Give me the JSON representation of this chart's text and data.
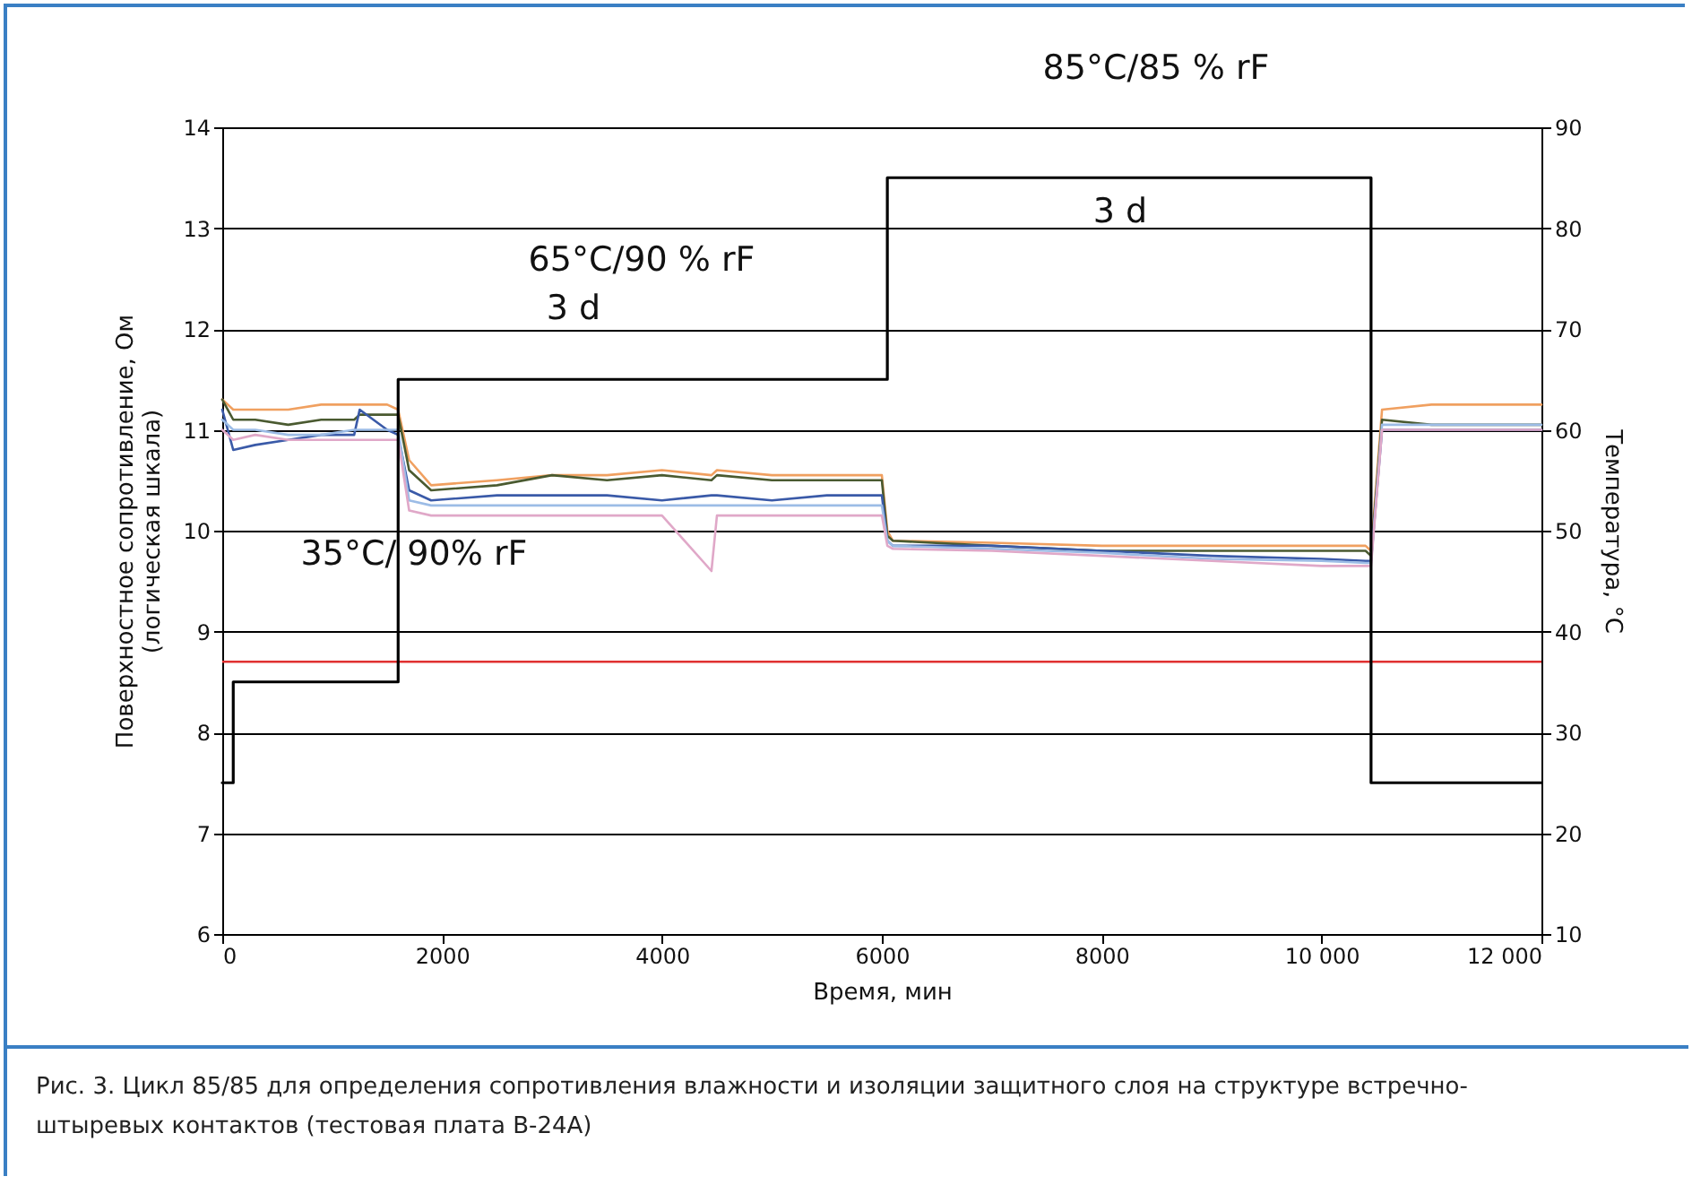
{
  "chart_data": {
    "type": "line",
    "xlabel": "Время, мин",
    "ylabel": "Поверхностное сопротивление, Ом\n(логическая шкала)",
    "y2label": "Температура, °C",
    "x": [
      0,
      100,
      300,
      600,
      900,
      1200,
      1250,
      1500,
      1600,
      1700,
      1900,
      2500,
      3000,
      3500,
      4000,
      4450,
      4500,
      5000,
      5500,
      6000,
      6050,
      6100,
      7000,
      8000,
      9000,
      10000,
      10400,
      10450,
      10550,
      11000,
      12000
    ],
    "series": [
      {
        "color": "#f0a060",
        "values": [
          11.3,
          11.2,
          11.2,
          11.2,
          11.25,
          11.25,
          11.25,
          11.25,
          11.2,
          10.7,
          10.45,
          10.5,
          10.55,
          10.55,
          10.6,
          10.55,
          10.6,
          10.55,
          10.55,
          10.55,
          10.0,
          9.9,
          9.88,
          9.85,
          9.85,
          9.85,
          9.85,
          9.8,
          11.2,
          11.25,
          11.25
        ]
      },
      {
        "color": "#4a5a30",
        "values": [
          11.3,
          11.1,
          11.1,
          11.05,
          11.1,
          11.1,
          11.15,
          11.15,
          11.15,
          10.6,
          10.4,
          10.45,
          10.55,
          10.5,
          10.55,
          10.5,
          10.55,
          10.5,
          10.5,
          10.5,
          9.95,
          9.9,
          9.85,
          9.8,
          9.8,
          9.8,
          9.8,
          9.75,
          11.1,
          11.05,
          11.05
        ]
      },
      {
        "color": "#3a5aa8",
        "values": [
          11.2,
          10.8,
          10.85,
          10.9,
          10.95,
          10.95,
          11.2,
          11.0,
          10.95,
          10.4,
          10.3,
          10.35,
          10.35,
          10.35,
          10.3,
          10.35,
          10.35,
          10.3,
          10.35,
          10.35,
          9.9,
          9.85,
          9.85,
          9.8,
          9.75,
          9.72,
          9.7,
          9.7,
          11.0,
          11.0,
          11.0
        ]
      },
      {
        "color": "#9cbce6",
        "values": [
          11.1,
          11.0,
          11.0,
          10.95,
          10.95,
          11.0,
          11.0,
          11.0,
          11.0,
          10.3,
          10.25,
          10.25,
          10.25,
          10.25,
          10.25,
          10.25,
          10.25,
          10.25,
          10.25,
          10.25,
          9.9,
          9.85,
          9.82,
          9.78,
          9.72,
          9.7,
          9.68,
          9.68,
          11.05,
          11.05,
          11.05
        ]
      },
      {
        "color": "#e0a8c8",
        "values": [
          11.0,
          10.9,
          10.95,
          10.9,
          10.9,
          10.9,
          10.9,
          10.9,
          10.9,
          10.2,
          10.15,
          10.15,
          10.15,
          10.15,
          10.15,
          9.6,
          10.15,
          10.15,
          10.15,
          10.15,
          9.85,
          9.82,
          9.8,
          9.75,
          9.7,
          9.65,
          9.65,
          9.65,
          11.0,
          11.0,
          11.0
        ]
      },
      {
        "type": "line",
        "axis": "y2",
        "color": "#000000",
        "x": [
          0,
          100,
          100,
          1600,
          1600,
          6050,
          6050,
          10450,
          10450,
          12000
        ],
        "values": [
          25,
          25,
          35,
          35,
          65,
          65,
          85,
          85,
          25,
          25
        ]
      }
    ],
    "xlim": [
      0,
      12000
    ],
    "xticks": [
      0,
      2000,
      4000,
      6000,
      8000,
      {
        "value": 10000,
        "label": "10 000"
      },
      {
        "value": 12000,
        "label": "12 000"
      }
    ],
    "ylim": [
      6,
      14
    ],
    "yticks": [
      6,
      7,
      8,
      9,
      10,
      11,
      12,
      13,
      14
    ],
    "y2lim": [
      10,
      90
    ],
    "y2ticks": [
      10,
      20,
      30,
      40,
      50,
      60,
      70,
      80,
      90
    ],
    "grid": "y",
    "ref_lines": [
      {
        "axis": "y",
        "value": 8.7,
        "color": "#e03030"
      }
    ],
    "annotations": [
      "85°C/85 % rF",
      "65°C/90 % rF",
      "3 d",
      "3 d",
      "35°C/ 90% rF",
      "Рис. 3. Цикл 85/85 для определения сопротивления влажности и изоляции защитного слоя на структуре встречно-штыревых контактов (тестовая плата B-24A)"
    ]
  }
}
